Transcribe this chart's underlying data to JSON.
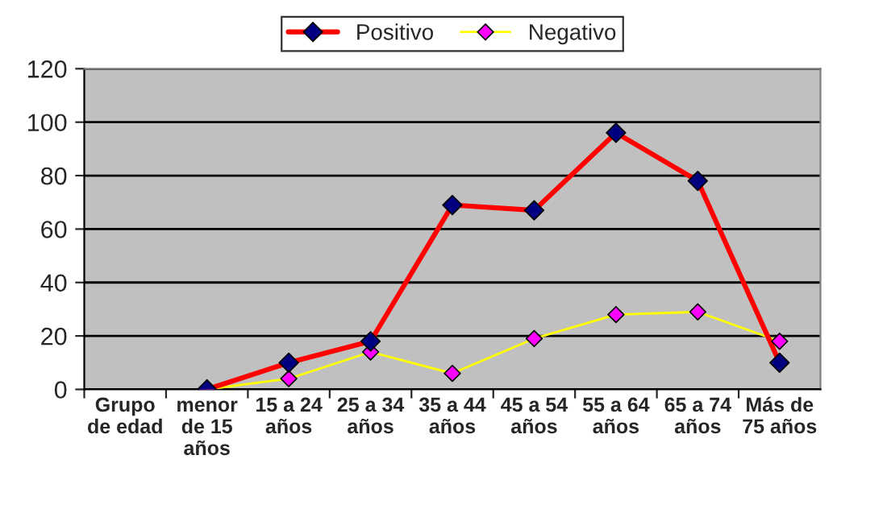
{
  "chart_data": {
    "type": "line",
    "categories": [
      "Grupo\nde edad",
      "menor\nde 15\naños",
      "15 a 24\naños",
      "25 a 34\naños",
      "35 a 44\naños",
      "45 a 54\naños",
      "55 a 64\naños",
      "65 a 74\naños",
      "Más de\n75 años"
    ],
    "series": [
      {
        "name": "Positivo",
        "color": "#ff0000",
        "colors": [
          "#000080",
          "#000080",
          "#000080",
          "#000080",
          "#000080",
          "#000080",
          "#000080",
          "#000080",
          "#000080"
        ],
        "values": [
          null,
          0,
          10,
          18,
          69,
          67,
          96,
          78,
          10
        ]
      },
      {
        "name": "Negativo",
        "color": "#ffff00",
        "colors": [
          "#ff00ff",
          "#ff00ff",
          "#ff00ff",
          "#ff00ff",
          "#ff00ff",
          "#ff00ff",
          "#ff00ff",
          "#ff00ff",
          "#ff00ff"
        ],
        "values": [
          null,
          0,
          4,
          14,
          6,
          19,
          28,
          29,
          18
        ]
      }
    ],
    "ylim": [
      0,
      120
    ],
    "yticks": [
      0,
      20,
      40,
      60,
      80,
      100,
      120
    ],
    "grid": "y",
    "legend": "top",
    "marker": "diamond",
    "line_style": "solid"
  }
}
